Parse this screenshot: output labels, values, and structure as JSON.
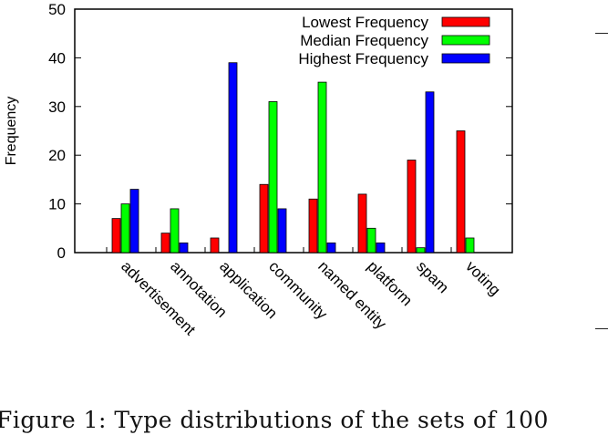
{
  "chart_data": {
    "type": "bar",
    "categories": [
      "advertisement",
      "annotation",
      "application",
      "community",
      "named entity",
      "platform",
      "spam",
      "voting"
    ],
    "series": [
      {
        "name": "Lowest Frequency",
        "color": "#ff0000",
        "values": [
          7,
          4,
          3,
          14,
          11,
          12,
          19,
          25
        ]
      },
      {
        "name": "Median Frequency",
        "color": "#00ff00",
        "values": [
          10,
          9,
          0,
          31,
          35,
          5,
          1,
          3
        ]
      },
      {
        "name": "Highest Frequency",
        "color": "#0000ff",
        "values": [
          13,
          2,
          39,
          9,
          2,
          2,
          33,
          0
        ]
      }
    ],
    "ylabel": "Frequency",
    "xlabel": "",
    "ylim": [
      0,
      50
    ],
    "yticks": [
      0,
      10,
      20,
      30,
      40,
      50
    ],
    "grid": false,
    "legend_position": "top-right"
  },
  "caption": "Figure 1:  Type distributions of the sets of 100"
}
